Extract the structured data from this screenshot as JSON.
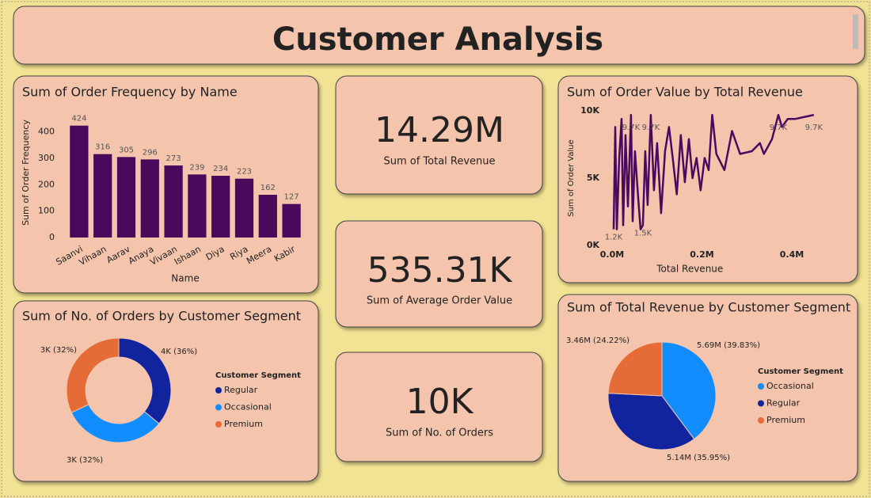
{
  "title": "Customer Analysis",
  "kpis": [
    {
      "value": "14.29M",
      "label": "Sum of Total Revenue"
    },
    {
      "value": "535.31K",
      "label": "Sum of Average Order Value"
    },
    {
      "value": "10K",
      "label": "Sum of No. of Orders"
    }
  ],
  "chart_data": [
    {
      "type": "bar",
      "title": "Sum of Order Frequency by Name",
      "x_label": "Name",
      "y_label": "Sum of Order Frequency",
      "categories": [
        "Saanvi",
        "Vihaan",
        "Aarav",
        "Anaya",
        "Vivaan",
        "Ishaan",
        "Diya",
        "Riya",
        "Meera",
        "Kabir"
      ],
      "values": [
        424,
        316,
        305,
        296,
        273,
        239,
        234,
        223,
        162,
        127
      ],
      "color": "#4a0a5c",
      "ylim": [
        0,
        450
      ],
      "yticks": [
        0,
        100,
        200,
        300,
        400
      ],
      "grid": false
    },
    {
      "type": "line",
      "title": "Sum of Order Value by Total Revenue",
      "x_label": "Total Revenue",
      "y_label": "Sum of Order Value",
      "x": [
        3500,
        7000,
        10500,
        15800,
        21100,
        24600,
        29900,
        35200,
        42200,
        45800,
        51000,
        58100,
        63400,
        68600,
        73900,
        79200,
        86200,
        93300,
        100300,
        109100,
        117900,
        126700,
        135000,
        144000,
        153000,
        162000,
        171000,
        179000,
        188000,
        197000,
        206000,
        215000,
        223000,
        232000,
        250000,
        267000,
        285000,
        311000,
        329000,
        338000,
        356000,
        370000,
        378000,
        391000,
        408000,
        449000
      ],
      "values": [
        1200,
        8800,
        1200,
        6500,
        9400,
        1500,
        8200,
        2900,
        9700,
        1800,
        7000,
        3500,
        1200,
        1500,
        7000,
        3000,
        9700,
        4100,
        7600,
        2400,
        7000,
        8800,
        6500,
        3800,
        8200,
        4700,
        7900,
        5000,
        6500,
        4100,
        6500,
        5600,
        9700,
        6800,
        5600,
        8500,
        6800,
        7000,
        7600,
        6800,
        7900,
        9700,
        8800,
        9400,
        9400,
        9700
      ],
      "value_labels": [
        "1.2K",
        null,
        null,
        null,
        null,
        null,
        null,
        null,
        "9.7K",
        null,
        null,
        null,
        null,
        "1.5K",
        null,
        null,
        "9.7K",
        null,
        null,
        null,
        null,
        null,
        null,
        null,
        null,
        null,
        null,
        null,
        null,
        null,
        null,
        null,
        null,
        null,
        null,
        null,
        null,
        null,
        null,
        null,
        null,
        "9.7K",
        null,
        null,
        null,
        "9.7K"
      ],
      "color": "#4b0a5e",
      "xlim": [
        0,
        452000
      ],
      "ylim": [
        0,
        10000
      ],
      "xticks": [
        {
          "value": 0,
          "label": "0.0M"
        },
        {
          "value": 200000,
          "label": "0.2M"
        },
        {
          "value": 400000,
          "label": "0.4M"
        }
      ],
      "yticks": [
        {
          "value": 0,
          "label": "0K"
        },
        {
          "value": 5000,
          "label": "5K"
        },
        {
          "value": 10000,
          "label": "10K"
        }
      ],
      "grid": false
    },
    {
      "type": "donut",
      "title": "Sum of No. of Orders by Customer Segment",
      "legend_title": "Customer Segment",
      "categories": [
        "Regular",
        "Occasional",
        "Premium"
      ],
      "values": [
        3600,
        3200,
        3200
      ],
      "value_labels": [
        "4K (36%)",
        "3K (32%)",
        "3K (32%)"
      ],
      "colors": [
        "#12239e",
        "#118dff",
        "#e66c37"
      ],
      "legend": "right"
    },
    {
      "type": "pie",
      "title": "Sum of Total Revenue by Customer Segment",
      "legend_title": "Customer Segment",
      "categories": [
        "Occasional",
        "Regular",
        "Premium"
      ],
      "values": [
        5690000,
        5140000,
        3460000
      ],
      "value_labels": [
        "5.69M (39.83%)",
        "5.14M (35.95%)",
        "3.46M (24.22%)"
      ],
      "colors": [
        "#118dff",
        "#12239e",
        "#e66c37"
      ],
      "legend": "right"
    }
  ]
}
